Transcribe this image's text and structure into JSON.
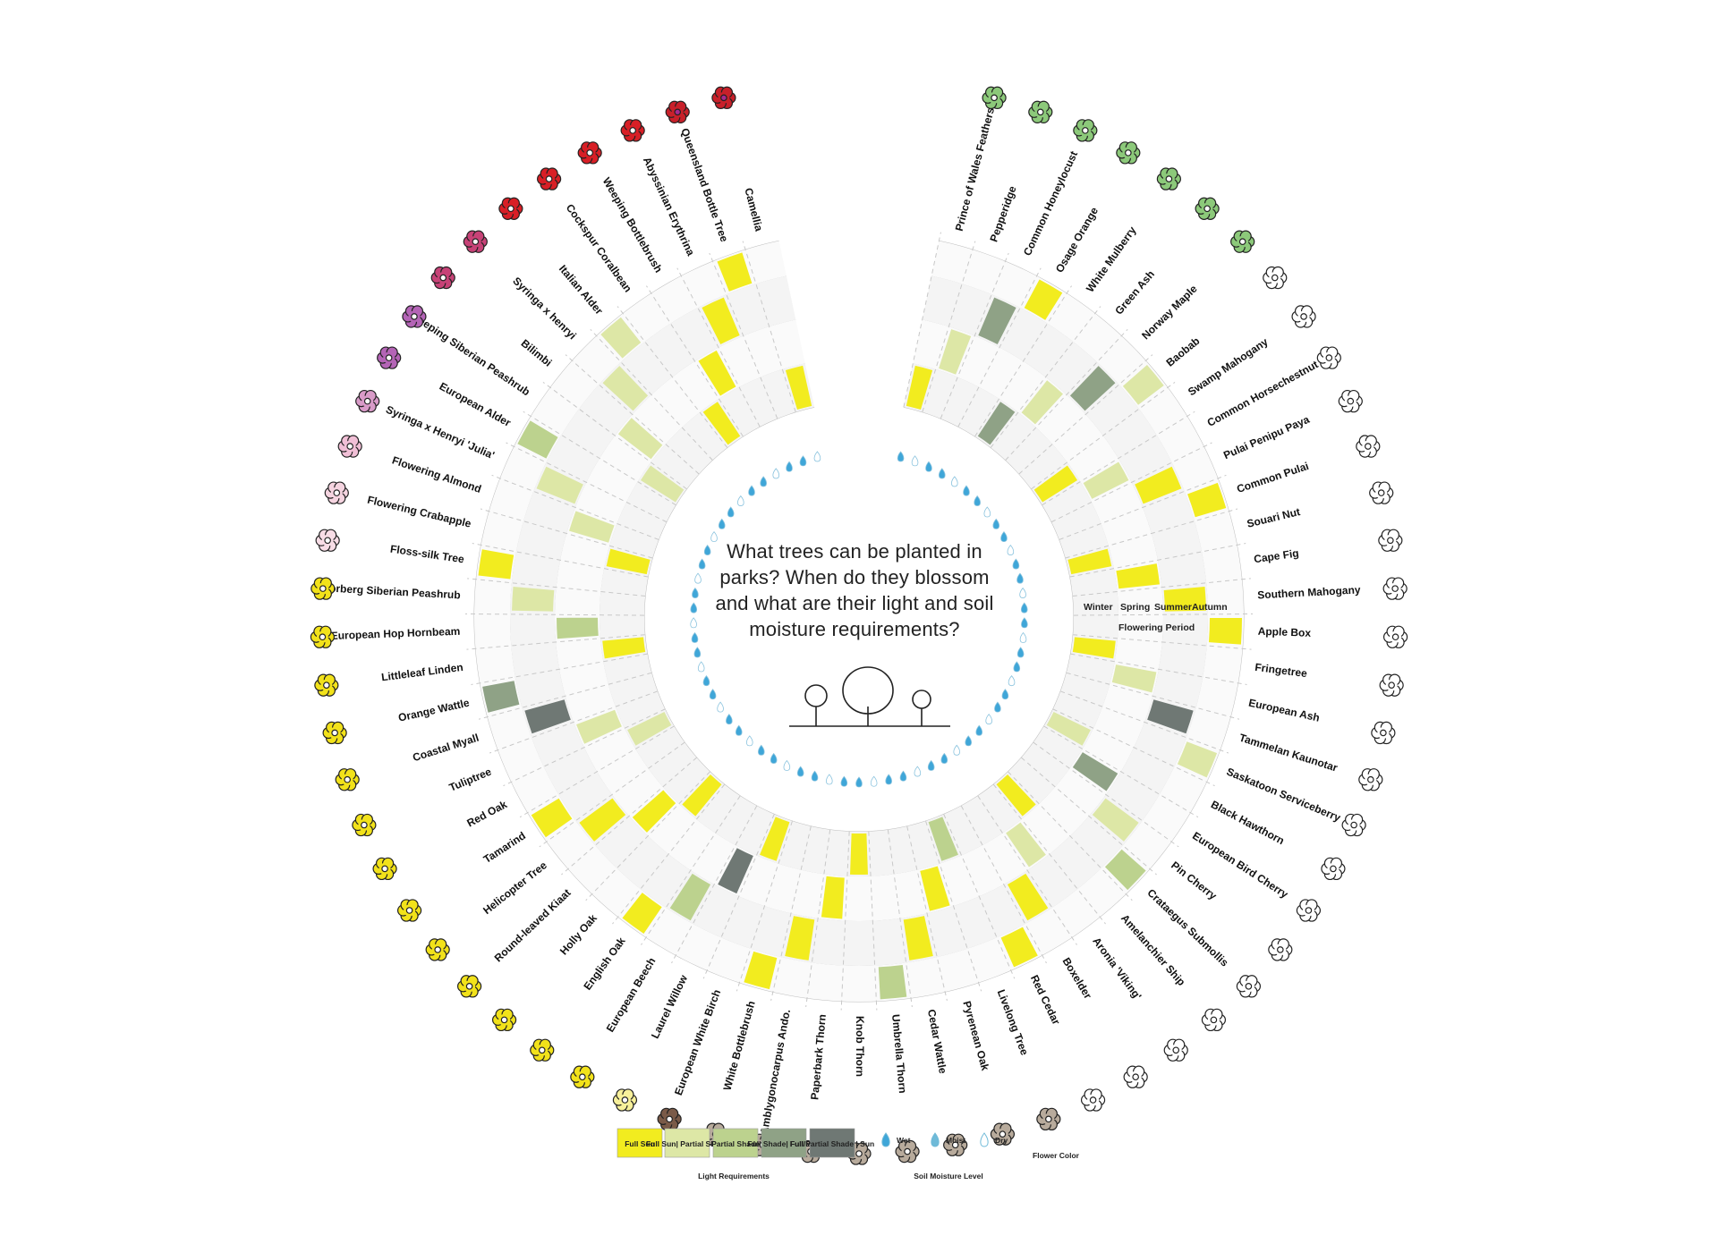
{
  "title": "What trees can be planted in parks? When do they blossom and what are their light and soil moisture requirements?",
  "axis": {
    "seasons": [
      "Winter",
      "Spring",
      "Summer",
      "Autumn"
    ],
    "flowering_label": "Flowering Period"
  },
  "legend": {
    "light_title": "Light  Requirements",
    "moisture_title": "Soil Moisture Level",
    "light": [
      {
        "label": "Full Sun",
        "color": "#f2ec1f"
      },
      {
        "label": "Full Sun| Partial Shade",
        "color": "#dde7a6"
      },
      {
        "label": "Partial Shade",
        "color": "#bcd28e"
      },
      {
        "label": "Full Shade| Full Sun",
        "color": "#8fa286"
      },
      {
        "label": "Full/Partial Shade | Sun",
        "color": "#6f7874"
      }
    ],
    "moisture": [
      {
        "label": "Wet",
        "icon": "drop-icon-blue",
        "color": "#3fa6d8"
      },
      {
        "label": "Moist",
        "icon": "drop-icon-half",
        "color": "#6fbad8"
      },
      {
        "label": "Dry",
        "icon": "drop-icon-white",
        "color": "#c9d3d6"
      }
    ],
    "flower_color_label": "Flower Color"
  },
  "trees": [
    {
      "name": "Camellia",
      "flower": "#c8202a",
      "center": "#a7298f",
      "light": 0
    },
    {
      "name": "Queensland Bottle Tree",
      "flower": "#c8202a",
      "center": "#a7298f",
      "light": 0
    },
    {
      "name": "Abyssinian Erythrina",
      "flower": "#d81f26",
      "center": "#ffffff",
      "light": 0
    },
    {
      "name": "Weeping Bottlebrush",
      "flower": "#d81f26",
      "center": "#ffffff",
      "light": 0
    },
    {
      "name": "Cockspur Coralbean",
      "flower": "#d81f26",
      "center": "#ffffff",
      "light": 0
    },
    {
      "name": "Italian Alder",
      "flower": "#d81f26",
      "center": "#ffffff",
      "light": 1
    },
    {
      "name": "Syringa x henryi",
      "flower": "#c74277",
      "center": "#ffffff",
      "light": 1
    },
    {
      "name": "Bilimbi",
      "flower": "#c74277",
      "center": "#ffffff",
      "light": 1
    },
    {
      "name": "Weeping Siberian Peashrub",
      "flower": "#b464b6",
      "center": "#ffffff",
      "light": 1
    },
    {
      "name": "European Alder",
      "flower": "#b464b6",
      "center": "#ffffff",
      "light": 2
    },
    {
      "name": "Syringa x Henryi 'Julia'",
      "flower": "#d99bc8",
      "center": "#ffffff",
      "light": 1
    },
    {
      "name": "Flowering Almond",
      "flower": "#f1bfd6",
      "center": "#ffffff",
      "light": 1
    },
    {
      "name": "Flowering Crabapple",
      "flower": "#f5d4e0",
      "center": "#ffffff",
      "light": 0
    },
    {
      "name": "Floss-silk Tree",
      "flower": "#f8dde6",
      "center": "#ffffff",
      "light": 0
    },
    {
      "name": "Lorberg Siberian Peashrub",
      "flower": "#f2e21a",
      "center": "#ffffff",
      "light": 1
    },
    {
      "name": "European Hop Hornbeam",
      "flower": "#f2e21a",
      "center": "#ffffff",
      "light": 2
    },
    {
      "name": "Littleleaf Linden",
      "flower": "#f2e21a",
      "center": "#ffffff",
      "light": 0
    },
    {
      "name": "Orange Wattle",
      "flower": "#f2e21a",
      "center": "#ffffff",
      "light": 3
    },
    {
      "name": "Coastal Myall",
      "flower": "#f2e21a",
      "center": "#ffffff",
      "light": 4
    },
    {
      "name": "Tuliptree",
      "flower": "#f2e21a",
      "center": "#ffffff",
      "light": 1
    },
    {
      "name": "Red Oak",
      "flower": "#f2e21a",
      "center": "#ffffff",
      "light": 1
    },
    {
      "name": "Tamarind",
      "flower": "#f2e21a",
      "center": "#ffffff",
      "light": 0
    },
    {
      "name": "Helicopter Tree",
      "flower": "#f2e21a",
      "center": "#ffffff",
      "light": 0
    },
    {
      "name": "Round-leaved Kiaat",
      "flower": "#f2e21a",
      "center": "#ffffff",
      "light": 0
    },
    {
      "name": "Holly Oak",
      "flower": "#f2e21a",
      "center": "#ffffff",
      "light": 0
    },
    {
      "name": "English Oak",
      "flower": "#f2e21a",
      "center": "#ffffff",
      "light": 0
    },
    {
      "name": "European Beech",
      "flower": "#f2e21a",
      "center": "#ffffff",
      "light": 2
    },
    {
      "name": "Laurel Willow",
      "flower": "#f7f09a",
      "center": "#ffffff",
      "light": 4
    },
    {
      "name": "European White Birch",
      "flower": "#7a5a48",
      "center": "#ffffff",
      "light": 0
    },
    {
      "name": "White Bottlebrush",
      "flower": "#b8ab9c",
      "center": "#ffffff",
      "light": 0
    },
    {
      "name": "Amblygonocarpus Ando.",
      "flower": "#b8ab9c",
      "center": "#ffffff",
      "light": 0
    },
    {
      "name": "Paperbark Thorn",
      "flower": "#b8ab9c",
      "center": "#ffffff",
      "light": 0
    },
    {
      "name": "Knob Thorn",
      "flower": "#b8ab9c",
      "center": "#ffffff",
      "light": 0
    },
    {
      "name": "Umbrella Thorn",
      "flower": "#b8ab9c",
      "center": "#ffffff",
      "light": 2
    },
    {
      "name": "Cedar Wattle",
      "flower": "#b8ab9c",
      "center": "#ffffff",
      "light": 0
    },
    {
      "name": "Pyrenean Oak",
      "flower": "#b8ab9c",
      "center": "#ffffff",
      "light": 0
    },
    {
      "name": "Livelong Tree",
      "flower": "#b8ab9c",
      "center": "#ffffff",
      "light": 2
    },
    {
      "name": "Red Cedar",
      "flower": "#ffffff",
      "center": "#ffffff",
      "light": 0
    },
    {
      "name": "Boxelder",
      "flower": "#ffffff",
      "center": "#ffffff",
      "light": 0
    },
    {
      "name": "Aronia 'Viking'",
      "flower": "#ffffff",
      "center": "#ffffff",
      "light": 1
    },
    {
      "name": "Amelanchier Ship",
      "flower": "#ffffff",
      "center": "#ffffff",
      "light": 0
    },
    {
      "name": "Crataegus Submollis",
      "flower": "#ffffff",
      "center": "#ffffff",
      "light": 2
    },
    {
      "name": "Pin Cherry",
      "flower": "#ffffff",
      "center": "#ffffff",
      "light": 1
    },
    {
      "name": "European Bird Cherry",
      "flower": "#ffffff",
      "center": "#ffffff",
      "light": 3
    },
    {
      "name": "Black Hawthorn",
      "flower": "#ffffff",
      "center": "#ffffff",
      "light": 1
    },
    {
      "name": "Saskatoon Serviceberry",
      "flower": "#ffffff",
      "center": "#ffffff",
      "light": 1
    },
    {
      "name": "Tammelan Kaunotar",
      "flower": "#ffffff",
      "center": "#ffffff",
      "light": 4
    },
    {
      "name": "European Ash",
      "flower": "#ffffff",
      "center": "#ffffff",
      "light": 1
    },
    {
      "name": "Fringetree",
      "flower": "#ffffff",
      "center": "#ffffff",
      "light": 0
    },
    {
      "name": "Apple Box",
      "flower": "#ffffff",
      "center": "#ffffff",
      "light": 0
    },
    {
      "name": "Southern Mahogany",
      "flower": "#ffffff",
      "center": "#ffffff",
      "light": 0
    },
    {
      "name": "Cape Fig",
      "flower": "#ffffff",
      "center": "#ffffff",
      "light": 0
    },
    {
      "name": "Souari Nut",
      "flower": "#ffffff",
      "center": "#ffffff",
      "light": 0
    },
    {
      "name": "Common Pulai",
      "flower": "#ffffff",
      "center": "#ffffff",
      "light": 0
    },
    {
      "name": "Pulai Penipu Paya",
      "flower": "#ffffff",
      "center": "#ffffff",
      "light": 0
    },
    {
      "name": "Common Horsechestnut",
      "flower": "#ffffff",
      "center": "#ffffff",
      "light": 1
    },
    {
      "name": "Swamp Mahogany",
      "flower": "#ffffff",
      "center": "#ffffff",
      "light": 0
    },
    {
      "name": "Baobab",
      "flower": "#ffffff",
      "center": "#ffffff",
      "light": 1
    },
    {
      "name": "Norway Maple",
      "flower": "#8cc97a",
      "center": "#ffffff",
      "light": 3
    },
    {
      "name": "Green Ash",
      "flower": "#8cc97a",
      "center": "#ffffff",
      "light": 1
    },
    {
      "name": "White Mulberry",
      "flower": "#8cc97a",
      "center": "#ffffff",
      "light": 3
    },
    {
      "name": "Osage Orange",
      "flower": "#8cc97a",
      "center": "#ffffff",
      "light": 0
    },
    {
      "name": "Common Honeylocust",
      "flower": "#8cc97a",
      "center": "#ffffff",
      "light": 3
    },
    {
      "name": "Pepperidge",
      "flower": "#8cc97a",
      "center": "#ffffff",
      "light": 1
    },
    {
      "name": "Prince of Wales Feathers",
      "flower": "#8cc97a",
      "center": "#ffffff",
      "light": 0
    }
  ]
}
